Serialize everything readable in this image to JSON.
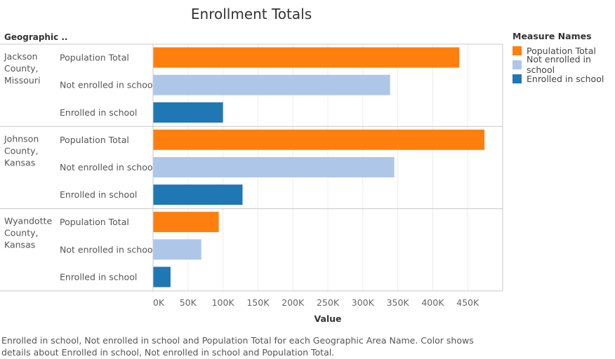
{
  "chart_data": {
    "type": "bar",
    "orientation": "horizontal",
    "title": "Enrollment Totals",
    "row_header": "Geographic ..",
    "xlabel": "Value",
    "xlim": [
      0,
      500000
    ],
    "ticks": [
      0,
      50000,
      100000,
      150000,
      200000,
      250000,
      300000,
      350000,
      400000,
      450000
    ],
    "tick_labels": [
      "0K",
      "50K",
      "100K",
      "150K",
      "200K",
      "250K",
      "300K",
      "350K",
      "400K",
      "450K"
    ],
    "grid": true,
    "legend_position": "right",
    "legend_title": "Measure Names",
    "measures": [
      {
        "name": "Population Total",
        "color": "#ff7f0e"
      },
      {
        "name": "Not enrolled in school",
        "color": "#aec7e8"
      },
      {
        "name": "Enrolled in school",
        "color": "#1f77b4"
      }
    ],
    "groups": [
      {
        "name_lines": [
          "Jackson",
          "County,",
          "Missouri"
        ],
        "values": [
          438000,
          339000,
          100000
        ]
      },
      {
        "name_lines": [
          "Johnson",
          "County,",
          "Kansas"
        ],
        "values": [
          474000,
          345000,
          128000
        ]
      },
      {
        "name_lines": [
          "Wyandotte",
          "County,",
          "Kansas"
        ],
        "values": [
          94000,
          69000,
          25000
        ]
      }
    ]
  },
  "caption": "Enrolled in school, Not enrolled in school and Population Total for each Geographic Area Name.  Color shows details about Enrolled in school, Not enrolled in school and Population Total."
}
